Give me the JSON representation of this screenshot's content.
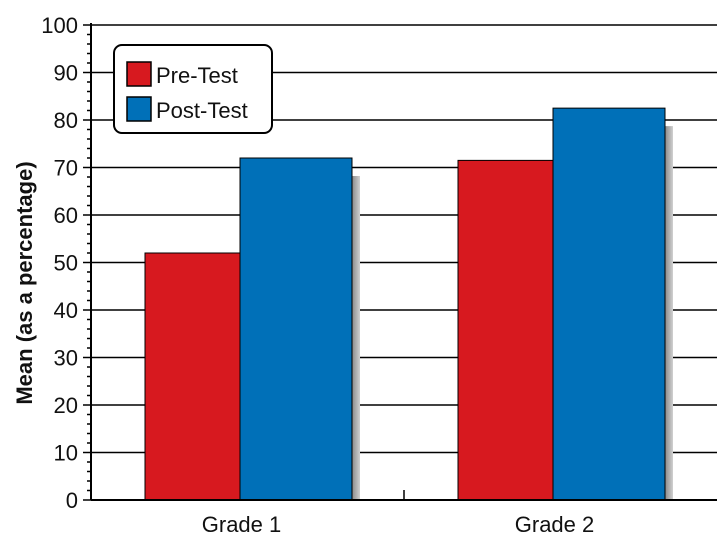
{
  "chart_data": {
    "type": "bar",
    "title": "",
    "xlabel": "",
    "ylabel": "Mean (as a percentage)",
    "ylim": [
      0,
      100
    ],
    "yticks": [
      0,
      10,
      20,
      30,
      40,
      50,
      60,
      70,
      80,
      90,
      100
    ],
    "categories": [
      "Grade 1",
      "Grade 2"
    ],
    "series": [
      {
        "name": "Pre-Test",
        "color": "#d7191f",
        "values": [
          52,
          71.5
        ]
      },
      {
        "name": "Post-Test",
        "color": "#0070b8",
        "values": [
          72,
          82.5
        ]
      }
    ],
    "grid": true,
    "legend_position": "top-left"
  }
}
